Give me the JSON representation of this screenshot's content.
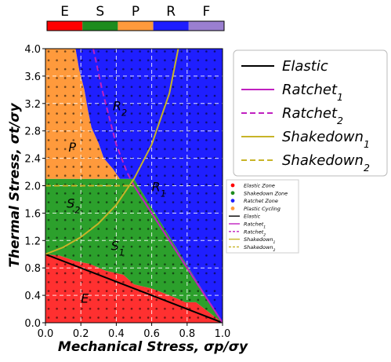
{
  "chart_data": {
    "type": "area",
    "xlabel": "Mechanical Stress, σp/σy",
    "ylabel": "Thermal Stress, σt/σy",
    "xlim": [
      0.0,
      1.0
    ],
    "ylim": [
      0.0,
      4.0
    ],
    "xticks": [
      "0.0",
      "0.2",
      "0.4",
      "0.6",
      "0.8",
      "1.0"
    ],
    "yticks": [
      "0.0",
      "0.4",
      "0.8",
      "1.2",
      "1.6",
      "2.0",
      "2.4",
      "2.8",
      "3.2",
      "3.6",
      "4.0"
    ],
    "grid": true,
    "colorbar": {
      "labels": [
        "E",
        "S",
        "P",
        "R",
        "F"
      ],
      "colors": [
        "#ff0000",
        "#1e8c1e",
        "#ff9a3c",
        "#1e1eff",
        "#9a7fd0"
      ]
    },
    "regions": [
      {
        "label": "E",
        "color": "#ff3030",
        "polygon": [
          [
            0,
            0
          ],
          [
            1.0,
            0
          ],
          [
            0.96,
            0.08
          ],
          [
            0.85,
            0.3
          ],
          [
            0.79,
            0.3
          ],
          [
            0.72,
            0.38
          ],
          [
            0.6,
            0.5
          ],
          [
            0.5,
            0.56
          ],
          [
            0.44,
            0.7
          ],
          [
            0.34,
            0.76
          ],
          [
            0.25,
            0.86
          ],
          [
            0.17,
            0.9
          ],
          [
            0.08,
            0.98
          ],
          [
            0,
            1.0
          ]
        ]
      },
      {
        "label": "S",
        "color": "#2ca02c",
        "polygon": [
          [
            0,
            1.0
          ],
          [
            0.08,
            0.98
          ],
          [
            0.17,
            0.9
          ],
          [
            0.25,
            0.86
          ],
          [
            0.34,
            0.76
          ],
          [
            0.44,
            0.7
          ],
          [
            0.5,
            0.56
          ],
          [
            0.6,
            0.5
          ],
          [
            0.72,
            0.38
          ],
          [
            0.79,
            0.3
          ],
          [
            0.85,
            0.3
          ],
          [
            0.96,
            0.08
          ],
          [
            1.0,
            0
          ],
          [
            0.5,
            2.1
          ],
          [
            0,
            2.1
          ]
        ]
      },
      {
        "label": "P",
        "color": "#ff9a3c",
        "polygon": [
          [
            0,
            2.1
          ],
          [
            0.42,
            2.1
          ],
          [
            0.38,
            2.25
          ],
          [
            0.33,
            2.4
          ],
          [
            0.3,
            2.62
          ],
          [
            0.26,
            2.85
          ],
          [
            0.24,
            3.1
          ],
          [
            0.22,
            3.4
          ],
          [
            0.19,
            3.7
          ],
          [
            0.17,
            4.0
          ],
          [
            0,
            4.0
          ]
        ]
      },
      {
        "label": "R",
        "color": "#1f1fff",
        "polygon": [
          [
            0.17,
            4.0
          ],
          [
            0.19,
            3.7
          ],
          [
            0.22,
            3.4
          ],
          [
            0.24,
            3.1
          ],
          [
            0.26,
            2.85
          ],
          [
            0.3,
            2.62
          ],
          [
            0.33,
            2.4
          ],
          [
            0.38,
            2.25
          ],
          [
            0.42,
            2.1
          ],
          [
            0.5,
            2.1
          ],
          [
            1.0,
            0
          ],
          [
            1.0,
            4.0
          ]
        ]
      }
    ],
    "region_labels": [
      {
        "text": "R",
        "sub": "2",
        "x": 0.38,
        "y": 3.1
      },
      {
        "text": "R",
        "sub": "1",
        "x": 0.6,
        "y": 1.92
      },
      {
        "text": "P",
        "sub": "",
        "x": 0.13,
        "y": 2.5
      },
      {
        "text": "S",
        "sub": "2",
        "x": 0.12,
        "y": 1.68
      },
      {
        "text": "S",
        "sub": "1",
        "x": 0.37,
        "y": 1.06
      },
      {
        "text": "E",
        "sub": "",
        "x": 0.2,
        "y": 0.29
      }
    ],
    "series": [
      {
        "name": "Elastic",
        "color": "#000000",
        "style": "solid",
        "x": [
          0.0,
          1.0
        ],
        "y": [
          1.0,
          0.0
        ]
      },
      {
        "name": "Ratchet",
        "sub": "1",
        "color": "#c020c0",
        "style": "solid",
        "x": [
          0.5,
          1.0
        ],
        "y": [
          2.0,
          0.0
        ]
      },
      {
        "name": "Ratchet",
        "sub": "2",
        "color": "#c020c0",
        "style": "dashed",
        "x": [
          0.27,
          0.32,
          0.4,
          0.46,
          0.5,
          1.0
        ],
        "y": [
          4.0,
          3.4,
          2.6,
          2.2,
          2.0,
          0.0
        ]
      },
      {
        "name": "Shakedown",
        "sub": "1",
        "color": "#c8b428",
        "style": "solid",
        "x": [
          0.0,
          0.1,
          0.2,
          0.3,
          0.4,
          0.5,
          0.6,
          0.7,
          0.75
        ],
        "y": [
          1.0,
          1.1,
          1.25,
          1.45,
          1.72,
          2.1,
          2.6,
          3.35,
          4.0
        ]
      },
      {
        "name": "Shakedown",
        "sub": "2",
        "color": "#c8b428",
        "style": "dashed",
        "x": [
          0.0,
          0.5
        ],
        "y": [
          2.0,
          2.0
        ]
      }
    ],
    "legend_main": {
      "placement": "upper right, outside plot",
      "entries": [
        {
          "text": "Elastic",
          "sub": "",
          "color": "#000000",
          "style": "solid"
        },
        {
          "text": "Ratchet",
          "sub": "1",
          "color": "#c020c0",
          "style": "solid"
        },
        {
          "text": "Ratchet",
          "sub": "2",
          "color": "#c020c0",
          "style": "dashed"
        },
        {
          "text": "Shakedown",
          "sub": "1",
          "color": "#c8b428",
          "style": "solid"
        },
        {
          "text": "Shakedown",
          "sub": "2",
          "color": "#c8b428",
          "style": "dashed"
        }
      ]
    },
    "legend_small": {
      "placement": "right, middle",
      "entries": [
        {
          "text": "Elastic Zone",
          "kind": "dot",
          "color": "#ff0000"
        },
        {
          "text": "Shakedown Zone",
          "kind": "dot",
          "color": "#1e8c1e"
        },
        {
          "text": "Ratchet Zone",
          "kind": "dot",
          "color": "#1e1eff"
        },
        {
          "text": "Plastic Cycling",
          "kind": "dot",
          "color": "#ff9a3c"
        },
        {
          "text": "Elastic",
          "kind": "line",
          "color": "#000000",
          "style": "solid"
        },
        {
          "text": "Ratchet",
          "sub": "1",
          "kind": "line",
          "color": "#c020c0",
          "style": "solid"
        },
        {
          "text": "Ratchet",
          "sub": "2",
          "kind": "line",
          "color": "#c020c0",
          "style": "dashed"
        },
        {
          "text": "Shakedown",
          "sub": "1",
          "kind": "line",
          "color": "#c8b428",
          "style": "solid"
        },
        {
          "text": "Shakedown",
          "sub": "2",
          "kind": "line",
          "color": "#c8b428",
          "style": "dashed"
        }
      ]
    }
  }
}
